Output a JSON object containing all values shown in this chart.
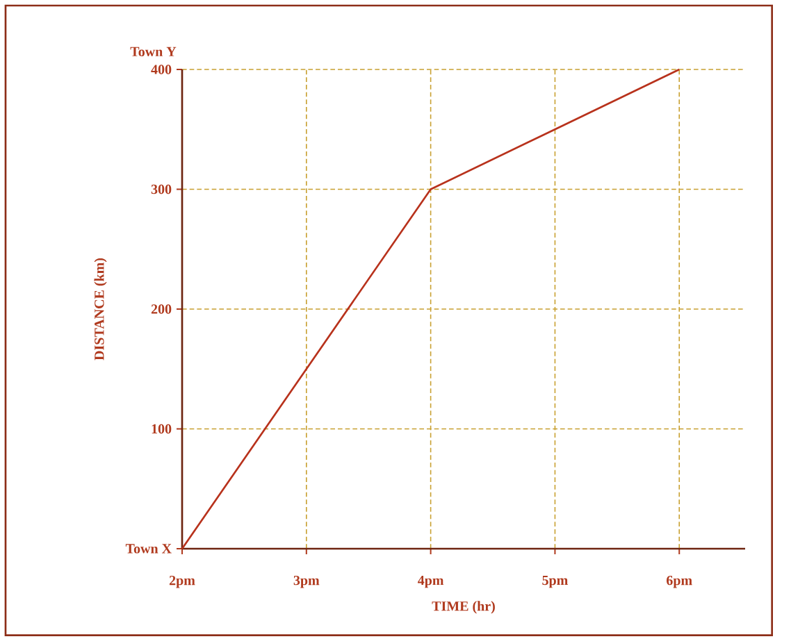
{
  "chart_data": {
    "type": "line",
    "xlabel": "TIME (hr)",
    "ylabel": "DISTANCE (km)",
    "annotations": [
      "Town Y"
    ],
    "categories": [
      "2pm",
      "3pm",
      "4pm",
      "5pm",
      "6pm"
    ],
    "series": [
      {
        "color": "#b8321c",
        "values": [
          0,
          150,
          300,
          350,
          400
        ]
      }
    ],
    "ylim": [
      0,
      400
    ],
    "yticks": [
      {
        "value": 0,
        "label": "Town X"
      },
      100,
      200,
      300,
      400
    ],
    "grid": true,
    "marker": "none",
    "line_style": "solid"
  }
}
